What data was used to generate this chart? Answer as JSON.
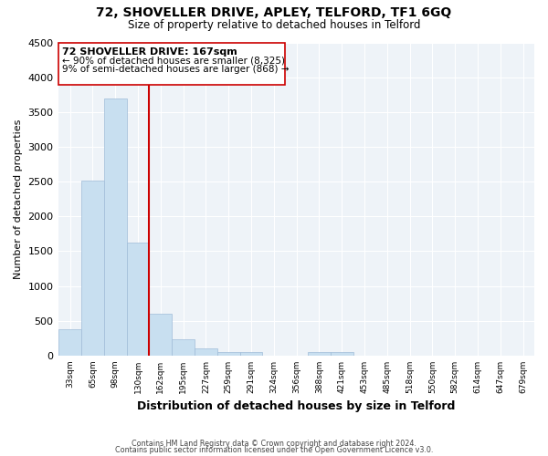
{
  "title": "72, SHOVELLER DRIVE, APLEY, TELFORD, TF1 6GQ",
  "subtitle": "Size of property relative to detached houses in Telford",
  "xlabel": "Distribution of detached houses by size in Telford",
  "ylabel": "Number of detached properties",
  "bar_labels": [
    "33sqm",
    "65sqm",
    "98sqm",
    "130sqm",
    "162sqm",
    "195sqm",
    "227sqm",
    "259sqm",
    "291sqm",
    "324sqm",
    "356sqm",
    "388sqm",
    "421sqm",
    "453sqm",
    "485sqm",
    "518sqm",
    "550sqm",
    "582sqm",
    "614sqm",
    "647sqm",
    "679sqm"
  ],
  "bar_values": [
    380,
    2520,
    3700,
    1630,
    600,
    240,
    100,
    55,
    55,
    0,
    0,
    55,
    55,
    0,
    0,
    0,
    0,
    0,
    0,
    0,
    0
  ],
  "bar_color": "#c8dff0",
  "bar_edge_color": "#a0bcd8",
  "highlight_line_color": "#cc0000",
  "highlight_bar_index": 4,
  "annotation_title": "72 SHOVELLER DRIVE: 167sqm",
  "annotation_line1": "← 90% of detached houses are smaller (8,325)",
  "annotation_line2": "9% of semi-detached houses are larger (868) →",
  "ylim": [
    0,
    4500
  ],
  "yticks": [
    0,
    500,
    1000,
    1500,
    2000,
    2500,
    3000,
    3500,
    4000,
    4500
  ],
  "footer_line1": "Contains HM Land Registry data © Crown copyright and database right 2024.",
  "footer_line2": "Contains public sector information licensed under the Open Government Licence v3.0.",
  "background_color": "#ffffff",
  "plot_bg_color": "#eef3f8",
  "grid_color": "#ffffff"
}
